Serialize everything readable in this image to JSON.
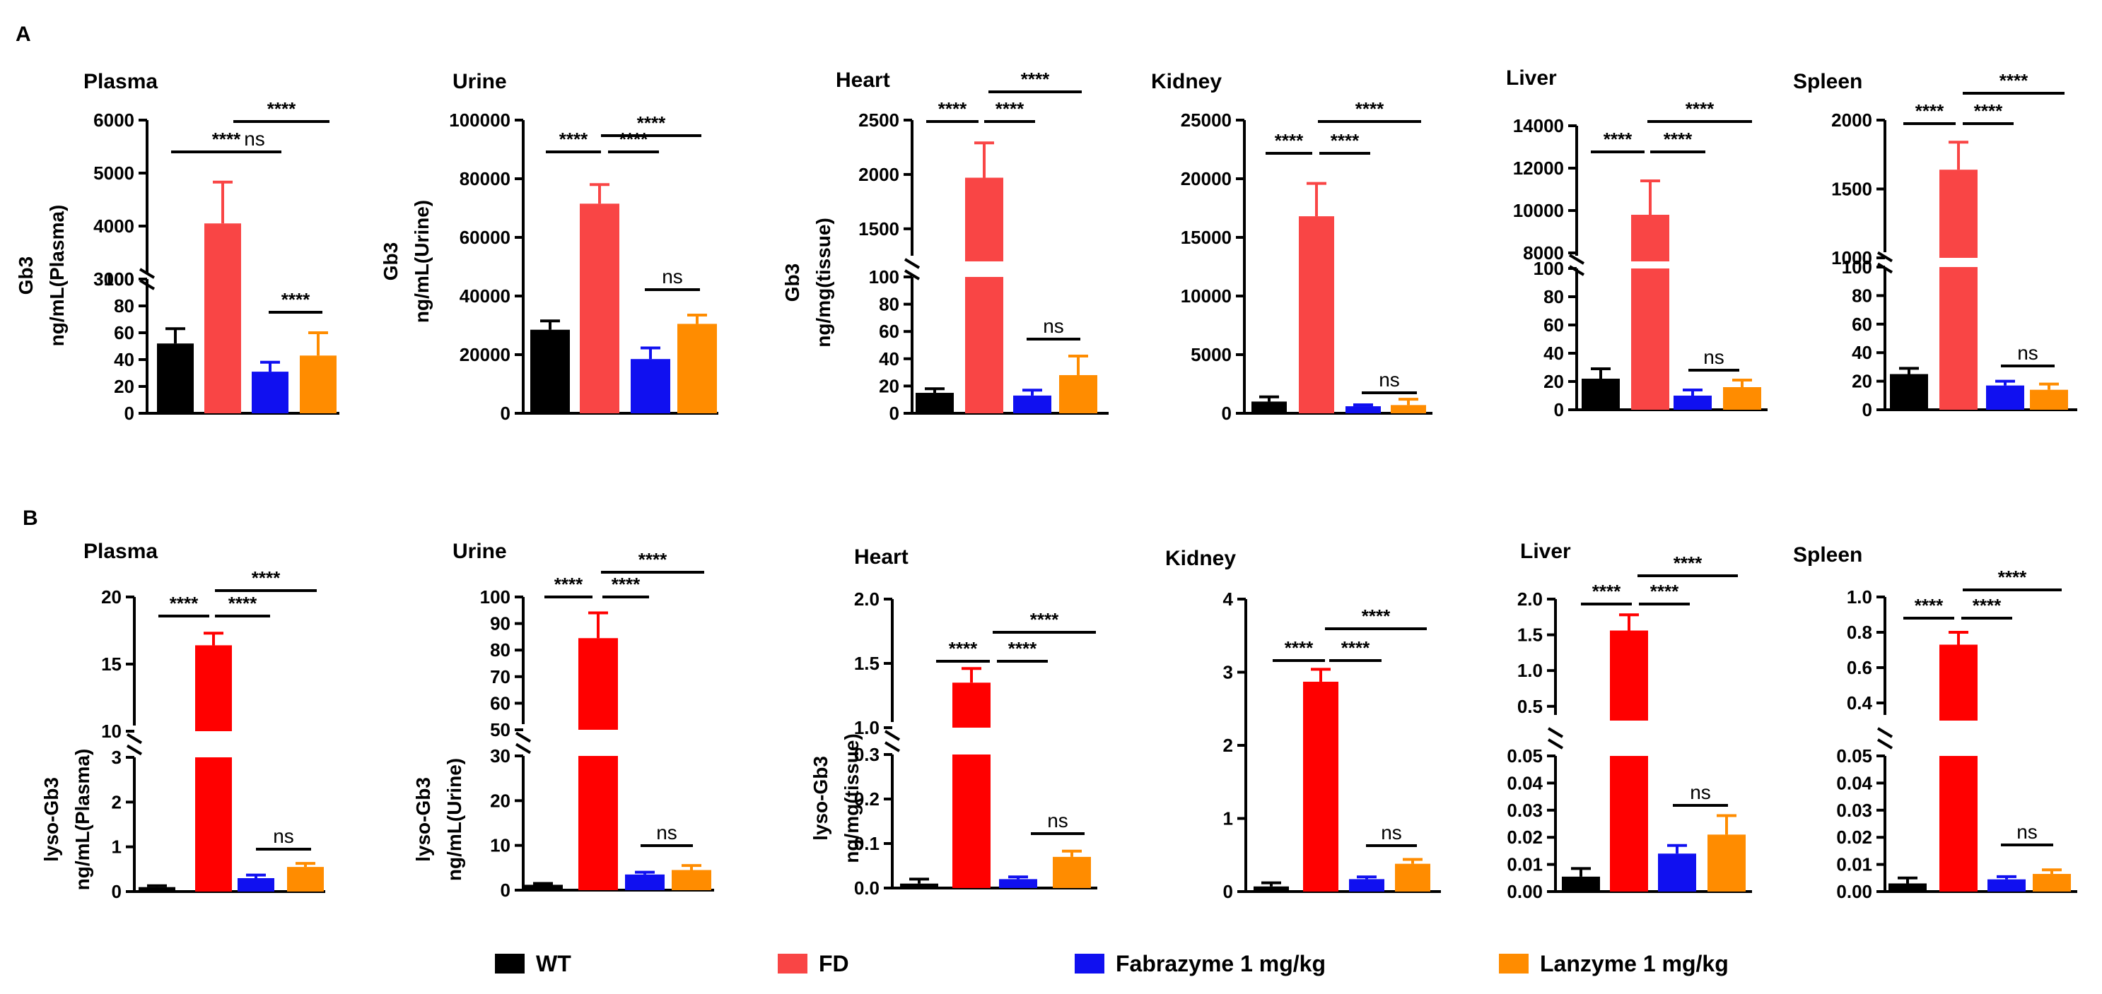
{
  "figure": {
    "groups": [
      "WT",
      "FD",
      "Fabrazyme 1 mg/kg",
      "Lanzyme 1 mg/kg"
    ],
    "colors": {
      "WT": "#000000",
      "FD": "#f94545",
      "Fabrazyme 1 mg/kg": "#1010f0",
      "Lanzyme 1 mg/kg": "#ff8c00"
    },
    "colors_lyso": {
      "FD": "#ff0000"
    }
  },
  "chart_data": [
    {
      "type": "bar",
      "panel": "A",
      "title": "Plasma",
      "ylabel": [
        "Gb3",
        "ng/mL(Plasma)"
      ],
      "categories": [
        "WT",
        "FD",
        "Fabrazyme 1 mg/kg",
        "Lanzyme 1 mg/kg"
      ],
      "values": [
        52,
        4050,
        31,
        43
      ],
      "errors": [
        11,
        780,
        7,
        17
      ],
      "ylim_upper": [
        3000,
        6000
      ],
      "ticks_upper": [
        "3000",
        "4000",
        "5000",
        "6000"
      ],
      "ylim_lower": [
        0,
        100
      ],
      "ticks_lower": [
        "0",
        "20",
        "40",
        "60",
        "80",
        "100"
      ],
      "sig": [
        [
          "****",
          "ns"
        ],
        [
          "****",
          "****"
        ]
      ]
    },
    {
      "type": "bar",
      "panel": "A",
      "title": "Urine",
      "ylabel": [
        "Gb3",
        "ng/mL(Urine)"
      ],
      "categories": [
        "WT",
        "FD",
        "Fabrazyme 1 mg/kg",
        "Lanzyme 1 mg/kg"
      ],
      "values": [
        28500,
        71500,
        18500,
        30500
      ],
      "errors": [
        3000,
        6500,
        3800,
        3000
      ],
      "ylim": [
        0,
        100000
      ],
      "ticks": [
        "0",
        "20000",
        "40000",
        "60000",
        "80000",
        "100000"
      ],
      "sig": [
        [
          "****",
          "****",
          "****",
          "ns"
        ]
      ]
    },
    {
      "type": "bar",
      "panel": "A",
      "title": "Heart",
      "ylabel": [
        "Gb3",
        "ng/mg(tissue)"
      ],
      "categories": [
        "WT",
        "FD",
        "Fabrazyme 1 mg/kg",
        "Lanzyme 1 mg/kg"
      ],
      "values": [
        15,
        1970,
        13,
        28
      ],
      "errors": [
        3,
        320,
        4,
        14
      ],
      "ylim_upper": [
        1200,
        2500
      ],
      "ticks_upper": [
        "1500",
        "2000",
        "2500"
      ],
      "ylim_lower": [
        0,
        100
      ],
      "ticks_lower": [
        "0",
        "20",
        "40",
        "60",
        "80",
        "100"
      ],
      "sig": [
        [
          "****",
          "****",
          "****",
          "ns"
        ]
      ]
    },
    {
      "type": "bar",
      "panel": "A",
      "title": "Kidney",
      "ylabel": [],
      "categories": [
        "WT",
        "FD",
        "Fabrazyme 1 mg/kg",
        "Lanzyme 1 mg/kg"
      ],
      "values": [
        1000,
        16800,
        600,
        700
      ],
      "errors": [
        400,
        2800,
        120,
        500
      ],
      "ylim": [
        0,
        25000
      ],
      "ticks": [
        "0",
        "5000",
        "10000",
        "15000",
        "20000",
        "25000"
      ],
      "sig": [
        [
          "****",
          "****",
          "****",
          "ns"
        ]
      ]
    },
    {
      "type": "bar",
      "panel": "A",
      "title": "Liver",
      "ylabel": [],
      "categories": [
        "WT",
        "FD",
        "Fabrazyme 1 mg/kg",
        "Lanzyme 1 mg/kg"
      ],
      "values": [
        22,
        9800,
        10,
        16
      ],
      "errors": [
        7,
        1600,
        4,
        5
      ],
      "ylim_upper": [
        7600,
        14000
      ],
      "ticks_upper": [
        "8000",
        "10000",
        "12000",
        "14000"
      ],
      "ylim_lower": [
        0,
        100
      ],
      "ticks_lower": [
        "0",
        "20",
        "40",
        "60",
        "80",
        "100"
      ],
      "sig": [
        [
          "****",
          "****",
          "****",
          "ns"
        ]
      ]
    },
    {
      "type": "bar",
      "panel": "A",
      "title": "Spleen",
      "ylabel": [],
      "categories": [
        "WT",
        "FD",
        "Fabrazyme 1 mg/kg",
        "Lanzyme 1 mg/kg"
      ],
      "values": [
        25,
        1640,
        17,
        14
      ],
      "errors": [
        4,
        200,
        3,
        4
      ],
      "ylim_upper": [
        1000,
        2000
      ],
      "ticks_upper": [
        "1000",
        "1500",
        "2000"
      ],
      "ylim_lower": [
        0,
        100
      ],
      "ticks_lower": [
        "0",
        "20",
        "40",
        "60",
        "80",
        "100"
      ],
      "sig": [
        [
          "****",
          "****",
          "****",
          "ns"
        ]
      ]
    },
    {
      "type": "bar",
      "panel": "B",
      "title": "Plasma",
      "ylabel": [
        "lyso-Gb3",
        "ng/mL(Plasma)"
      ],
      "categories": [
        "WT",
        "FD",
        "Fabrazyme 1 mg/kg",
        "Lanzyme 1 mg/kg"
      ],
      "values": [
        0.1,
        16.4,
        0.3,
        0.55
      ],
      "errors": [
        0.03,
        0.9,
        0.07,
        0.08
      ],
      "ylim_upper": [
        10,
        20
      ],
      "ticks_upper": [
        "10",
        "15",
        "20"
      ],
      "ylim_lower": [
        0,
        3
      ],
      "ticks_lower": [
        "0",
        "1",
        "2",
        "3"
      ],
      "sig": [
        [
          "****",
          "****",
          "****",
          "ns"
        ]
      ]
    },
    {
      "type": "bar",
      "panel": "B",
      "title": "Urine",
      "ylabel": [
        "lyso-Gb3",
        "ng/mL(Urine)"
      ],
      "categories": [
        "WT",
        "FD",
        "Fabrazyme 1 mg/kg",
        "Lanzyme 1 mg/kg"
      ],
      "values": [
        1.2,
        84.5,
        3.5,
        4.5
      ],
      "errors": [
        0.3,
        9.5,
        0.5,
        1.0
      ],
      "ylim_upper": [
        50,
        100
      ],
      "ticks_upper": [
        "50",
        "60",
        "70",
        "80",
        "90",
        "100"
      ],
      "ylim_lower": [
        0,
        30
      ],
      "ticks_lower": [
        "0",
        "10",
        "20",
        "30"
      ],
      "sig": [
        [
          "****",
          "****",
          "****",
          "ns"
        ]
      ]
    },
    {
      "type": "bar",
      "panel": "B",
      "title": "Heart",
      "ylabel": [
        "lyso-Gb3",
        "ng/mg(tissue)"
      ],
      "categories": [
        "WT",
        "FD",
        "Fabrazyme 1 mg/kg",
        "Lanzyme 1 mg/kg"
      ],
      "values": [
        0.01,
        1.35,
        0.02,
        0.07
      ],
      "errors": [
        0.01,
        0.11,
        0.005,
        0.013
      ],
      "ylim_upper": [
        1.0,
        2.0
      ],
      "ticks_upper": [
        "1.0",
        "1.5",
        "2.0"
      ],
      "ylim_lower": [
        0,
        0.3
      ],
      "ticks_lower": [
        "0.0",
        "0.1",
        "0.2",
        "0.3"
      ],
      "sig": [
        [
          "****",
          "****",
          "****",
          "ns"
        ]
      ]
    },
    {
      "type": "bar",
      "panel": "B",
      "title": "Kidney",
      "ylabel": [],
      "categories": [
        "WT",
        "FD",
        "Fabrazyme 1 mg/kg",
        "Lanzyme 1 mg/kg"
      ],
      "values": [
        0.07,
        2.87,
        0.17,
        0.38
      ],
      "errors": [
        0.05,
        0.17,
        0.03,
        0.06
      ],
      "ylim": [
        0,
        4
      ],
      "ticks": [
        "0",
        "1",
        "2",
        "3",
        "4"
      ],
      "sig": [
        [
          "****",
          "****",
          "****",
          "ns"
        ]
      ]
    },
    {
      "type": "bar",
      "panel": "B",
      "title": "Liver",
      "ylabel": [],
      "categories": [
        "WT",
        "FD",
        "Fabrazyme 1 mg/kg",
        "Lanzyme 1 mg/kg"
      ],
      "values": [
        0.0055,
        1.56,
        0.014,
        0.021
      ],
      "errors": [
        0.003,
        0.22,
        0.003,
        0.007
      ],
      "ylim_upper": [
        0.3,
        2.0
      ],
      "ticks_upper": [
        "0.5",
        "1.0",
        "1.5",
        "2.0"
      ],
      "ylim_lower": [
        0,
        0.05
      ],
      "ticks_lower": [
        "0.00",
        "0.01",
        "0.02",
        "0.03",
        "0.04",
        "0.05"
      ],
      "sig": [
        [
          "****",
          "****",
          "****",
          "ns"
        ]
      ]
    },
    {
      "type": "bar",
      "panel": "B",
      "title": "Spleen",
      "ylabel": [],
      "categories": [
        "WT",
        "FD",
        "Fabrazyme 1 mg/kg",
        "Lanzyme 1 mg/kg"
      ],
      "values": [
        0.003,
        0.73,
        0.0045,
        0.0065
      ],
      "errors": [
        0.002,
        0.07,
        0.001,
        0.0015
      ],
      "ylim_upper": [
        0.3,
        1.0
      ],
      "ticks_upper": [
        "0.4",
        "0.6",
        "0.8",
        "1.0"
      ],
      "ylim_lower": [
        0,
        0.05
      ],
      "ticks_lower": [
        "0.00",
        "0.01",
        "0.02",
        "0.03",
        "0.04",
        "0.05"
      ],
      "sig": [
        [
          "****",
          "****",
          "****",
          "ns"
        ]
      ]
    }
  ],
  "panel_labels": [
    "A",
    "B"
  ],
  "legend": {
    "items": [
      "WT",
      "FD",
      "Fabrazyme 1 mg/kg",
      "Lanzyme 1 mg/kg"
    ]
  }
}
